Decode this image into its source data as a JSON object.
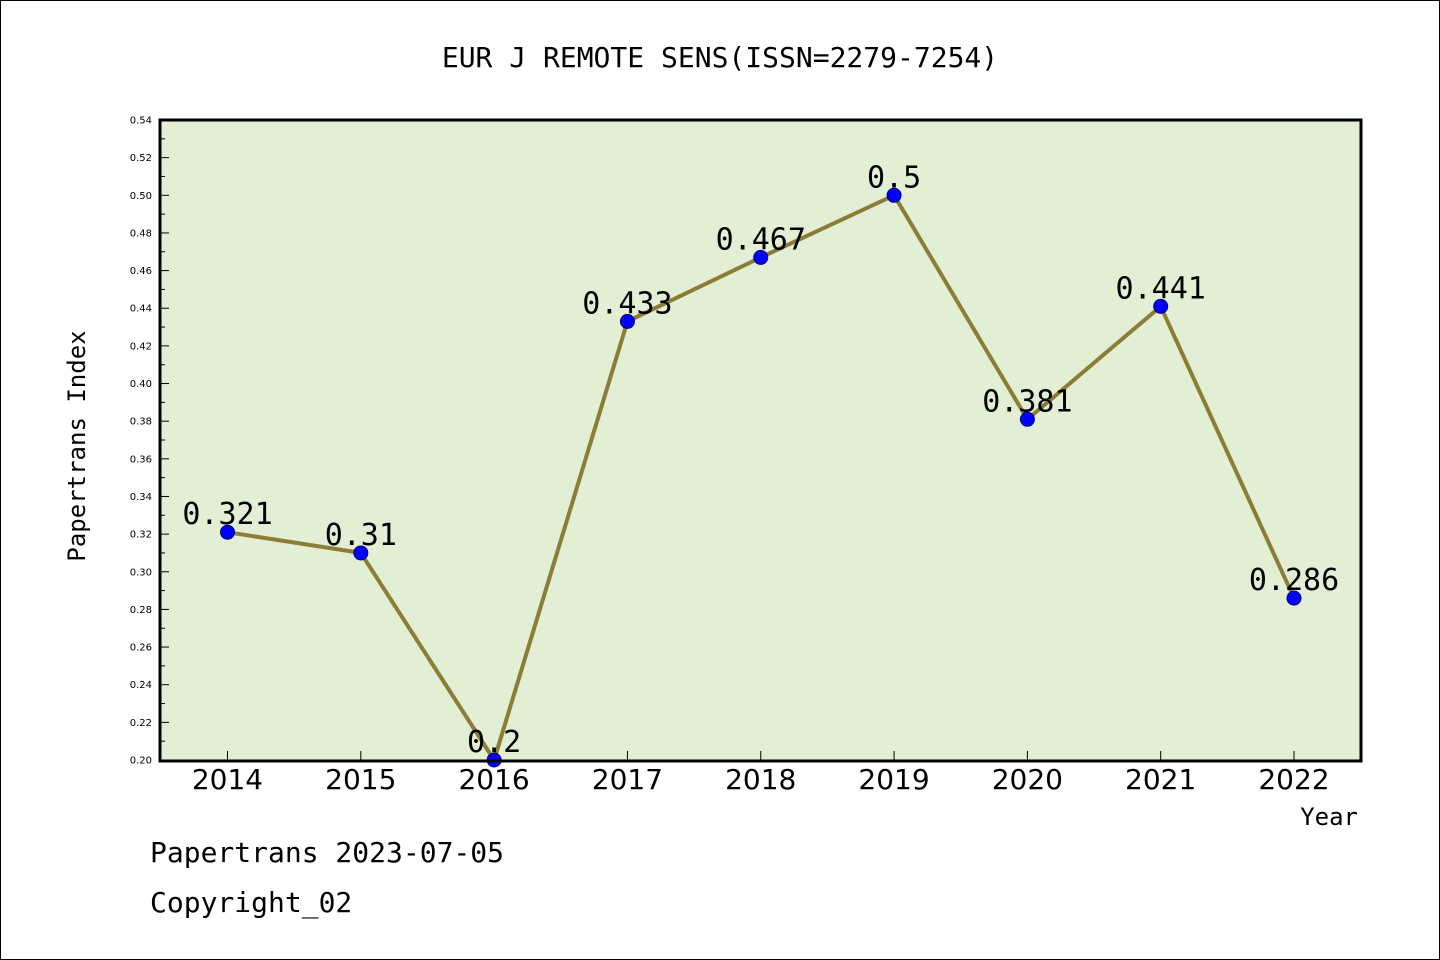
{
  "chart_data": {
    "type": "line",
    "title": "EUR J REMOTE SENS(ISSN=2279-7254)",
    "xlabel": "Year",
    "ylabel": "Papertrans Index",
    "categories": [
      "2014",
      "2015",
      "2016",
      "2017",
      "2018",
      "2019",
      "2020",
      "2021",
      "2022"
    ],
    "values": [
      0.321,
      0.31,
      0.2,
      0.433,
      0.467,
      0.5,
      0.381,
      0.441,
      0.286
    ],
    "data_labels": [
      "0.321",
      "0.31",
      "0.2",
      "0.433",
      "0.467",
      "0.5",
      "0.381",
      "0.441",
      "0.286"
    ],
    "ylim": [
      0.2,
      0.54
    ],
    "yticks": [
      "0.20",
      "0.22",
      "0.24",
      "0.26",
      "0.28",
      "0.30",
      "0.32",
      "0.34",
      "0.36",
      "0.38",
      "0.40",
      "0.42",
      "0.44",
      "0.46",
      "0.48",
      "0.50",
      "0.52",
      "0.54"
    ],
    "grid": false,
    "colors": {
      "plot_background": "#e2efd5",
      "line": "#8b7d35",
      "marker": "#0000ff"
    }
  },
  "footer": {
    "line1": "Papertrans 2023-07-05",
    "line2": "Copyright_02"
  }
}
